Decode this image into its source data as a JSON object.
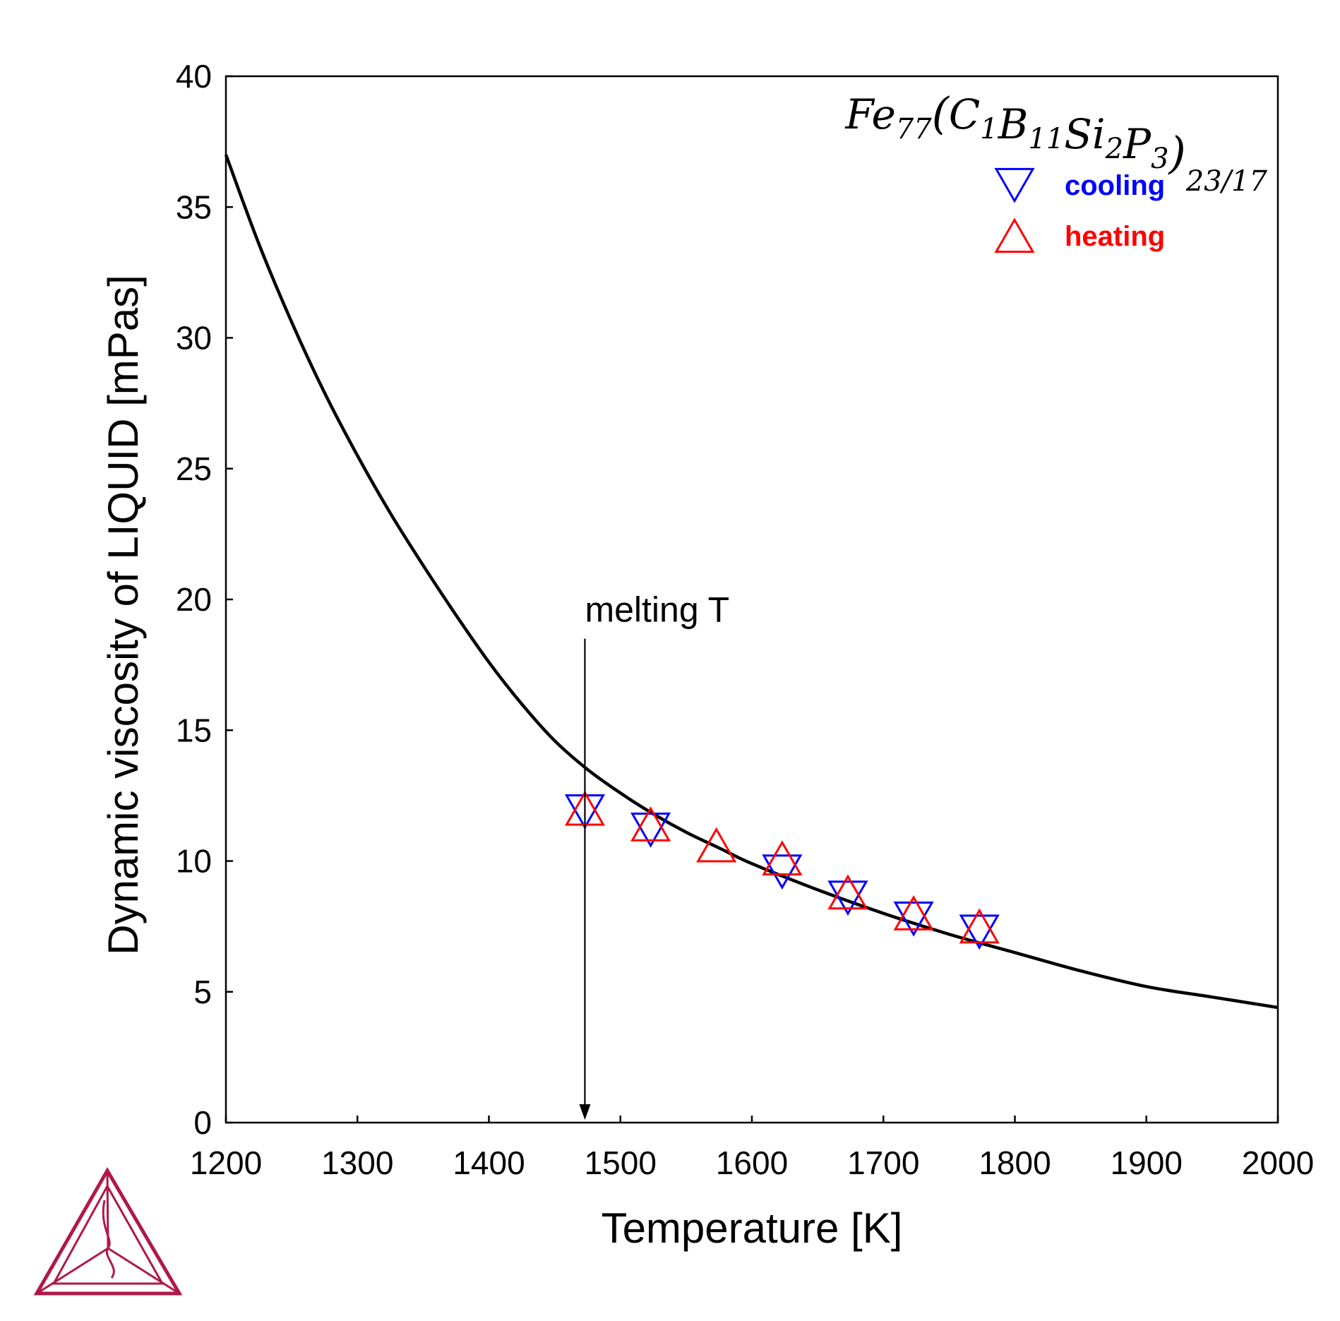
{
  "chart_data": {
    "type": "scatter",
    "title": "",
    "xlabel": "Temperature [K]",
    "ylabel": "Dynamic viscosity of LIQUID [mPas]",
    "xlim": [
      1200,
      2000
    ],
    "ylim": [
      0,
      40
    ],
    "xticks": [
      "1200",
      "1300",
      "1400",
      "1500",
      "1600",
      "1700",
      "1800",
      "1900",
      "2000"
    ],
    "yticks": [
      "0",
      "5",
      "10",
      "15",
      "20",
      "25",
      "30",
      "35",
      "40"
    ],
    "grid": false,
    "legend_position": "top-right",
    "composition": {
      "base": "Fe",
      "base_sub": "77",
      "elements": [
        {
          "symbol": "C",
          "sub": "1"
        },
        {
          "symbol": "B",
          "sub": "11"
        },
        {
          "symbol": "Si",
          "sub": "2"
        },
        {
          "symbol": "P",
          "sub": "3"
        }
      ],
      "outer_sub": "23/17"
    },
    "series": [
      {
        "name": "cooling",
        "marker": "triangle-down",
        "color": "#0000ff",
        "x": [
          1473,
          1523,
          1623,
          1673,
          1723,
          1773
        ],
        "y": [
          11.9,
          11.2,
          9.6,
          8.6,
          7.8,
          7.3
        ]
      },
      {
        "name": "heating",
        "marker": "triangle-up",
        "color": "#ff0000",
        "x": [
          1473,
          1523,
          1573,
          1623,
          1673,
          1723,
          1773
        ],
        "y": [
          12.0,
          11.4,
          10.6,
          10.1,
          8.8,
          8.0,
          7.5
        ]
      }
    ],
    "model_curve": {
      "color": "#000000",
      "x": [
        1200,
        1225,
        1250,
        1275,
        1300,
        1325,
        1350,
        1375,
        1400,
        1425,
        1450,
        1475,
        1500,
        1525,
        1550,
        1575,
        1600,
        1650,
        1700,
        1750,
        1800,
        1850,
        1900,
        1950,
        2000
      ],
      "y": [
        37.0,
        33.6,
        30.6,
        27.9,
        25.5,
        23.3,
        21.3,
        19.4,
        17.6,
        16.0,
        14.6,
        13.5,
        12.6,
        11.8,
        11.1,
        10.5,
        9.9,
        8.9,
        8.0,
        7.2,
        6.5,
        5.8,
        5.2,
        4.8,
        4.4
      ]
    },
    "annotations": [
      {
        "text": "melting T",
        "x": 1473,
        "y_top": 18.5,
        "y_bottom": 0
      }
    ]
  },
  "logo": {
    "name": "thermo-calc-logo",
    "color": "#b01848"
  }
}
